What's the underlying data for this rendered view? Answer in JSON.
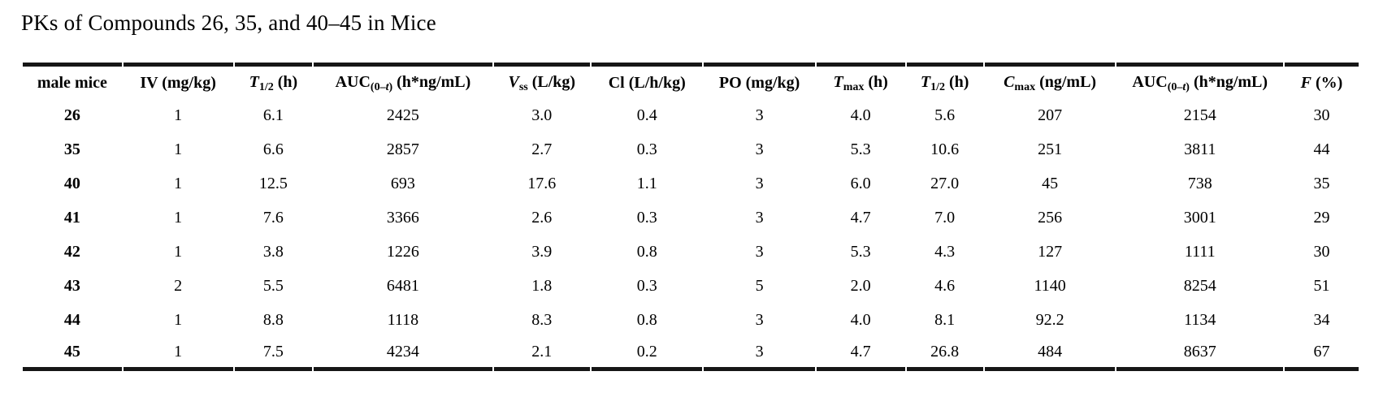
{
  "page": {
    "title": "PKs of Compounds 26, 35, and 40–45 in Mice"
  },
  "colors": {
    "text": "#000000",
    "rule": "#161616",
    "background": "#ffffff"
  },
  "table": {
    "columns": [
      {
        "id": "male-mice",
        "width": "7.5%",
        "parts": [
          {
            "text": "male mice"
          }
        ]
      },
      {
        "id": "iv-dose",
        "width": "8.3%",
        "parts": [
          {
            "text": "IV (mg/kg)"
          }
        ]
      },
      {
        "id": "t-half-iv",
        "width": "5.9%",
        "parts": [
          {
            "text": "T",
            "italic": true
          },
          {
            "text": "1/2",
            "sub": true
          },
          {
            "text": " (h)"
          }
        ]
      },
      {
        "id": "auc-iv",
        "width": "13.5%",
        "parts": [
          {
            "text": "AUC"
          },
          {
            "text": "(0–",
            "sub": true
          },
          {
            "text": "t",
            "sub": true,
            "italic": true
          },
          {
            "text": ")",
            "sub": true
          },
          {
            "text": " (h*ng/mL)"
          }
        ]
      },
      {
        "id": "vss",
        "width": "7.3%",
        "parts": [
          {
            "text": "V",
            "italic": true
          },
          {
            "text": "ss",
            "sub": true
          },
          {
            "text": " (L/kg)"
          }
        ]
      },
      {
        "id": "cl",
        "width": "8.4%",
        "parts": [
          {
            "text": "Cl (L/h/kg)"
          }
        ]
      },
      {
        "id": "po-dose",
        "width": "8.4%",
        "parts": [
          {
            "text": "PO (mg/kg)"
          }
        ]
      },
      {
        "id": "tmax",
        "width": "6.7%",
        "parts": [
          {
            "text": "T",
            "italic": true
          },
          {
            "text": "max",
            "sub": true
          },
          {
            "text": " (h)"
          }
        ]
      },
      {
        "id": "t-half-po",
        "width": "5.8%",
        "parts": [
          {
            "text": "T",
            "italic": true
          },
          {
            "text": "1/2",
            "sub": true
          },
          {
            "text": " (h)"
          }
        ]
      },
      {
        "id": "cmax",
        "width": "9.9%",
        "parts": [
          {
            "text": "C",
            "italic": true
          },
          {
            "text": "max",
            "sub": true
          },
          {
            "text": " (ng/mL)"
          }
        ]
      },
      {
        "id": "auc-po",
        "width": "12.6%",
        "parts": [
          {
            "text": "AUC"
          },
          {
            "text": "(0–",
            "sub": true
          },
          {
            "text": "t",
            "sub": true,
            "italic": true
          },
          {
            "text": ")",
            "sub": true
          },
          {
            "text": " (h*ng/mL)"
          }
        ]
      },
      {
        "id": "f-percent",
        "width": "5.6%",
        "parts": [
          {
            "text": "F",
            "italic": true
          },
          {
            "text": " (%)"
          }
        ]
      }
    ],
    "rows": [
      {
        "compound": "26",
        "values": [
          "1",
          "6.1",
          "2425",
          "3.0",
          "0.4",
          "3",
          "4.0",
          "5.6",
          "207",
          "2154",
          "30"
        ]
      },
      {
        "compound": "35",
        "values": [
          "1",
          "6.6",
          "2857",
          "2.7",
          "0.3",
          "3",
          "5.3",
          "10.6",
          "251",
          "3811",
          "44"
        ]
      },
      {
        "compound": "40",
        "values": [
          "1",
          "12.5",
          "693",
          "17.6",
          "1.1",
          "3",
          "6.0",
          "27.0",
          "45",
          "738",
          "35"
        ]
      },
      {
        "compound": "41",
        "values": [
          "1",
          "7.6",
          "3366",
          "2.6",
          "0.3",
          "3",
          "4.7",
          "7.0",
          "256",
          "3001",
          "29"
        ]
      },
      {
        "compound": "42",
        "values": [
          "1",
          "3.8",
          "1226",
          "3.9",
          "0.8",
          "3",
          "5.3",
          "4.3",
          "127",
          "1111",
          "30"
        ]
      },
      {
        "compound": "43",
        "values": [
          "2",
          "5.5",
          "6481",
          "1.8",
          "0.3",
          "5",
          "2.0",
          "4.6",
          "1140",
          "8254",
          "51"
        ]
      },
      {
        "compound": "44",
        "values": [
          "1",
          "8.8",
          "1118",
          "8.3",
          "0.8",
          "3",
          "4.0",
          "8.1",
          "92.2",
          "1134",
          "34"
        ]
      },
      {
        "compound": "45",
        "values": [
          "1",
          "7.5",
          "4234",
          "2.1",
          "0.2",
          "3",
          "4.7",
          "26.8",
          "484",
          "8637",
          "67"
        ]
      }
    ]
  }
}
